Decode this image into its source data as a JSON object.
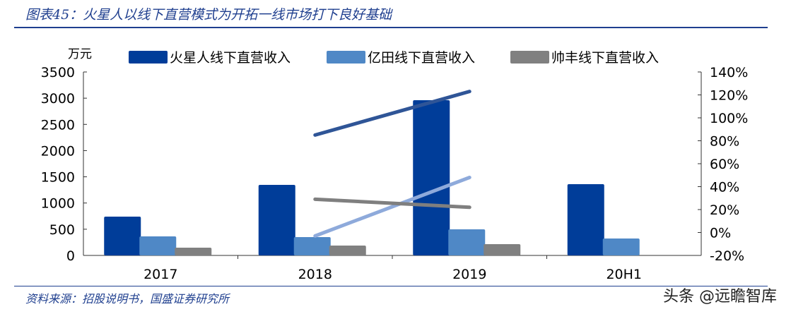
{
  "title": "图表45：火星人以线下直营模式为开拓一线市场打下良好基础",
  "source": "资料来源：招股说明书，国盛证券研究所",
  "watermark": "头条 @远瞻智库",
  "chart_data": {
    "type": "bar",
    "categories": [
      "2017",
      "2018",
      "2019",
      "20H1"
    ],
    "ylabel": "万元",
    "ylim": [
      0,
      3500
    ],
    "yticks": [
      "0",
      "500",
      "1000",
      "1500",
      "2000",
      "2500",
      "3000",
      "3500"
    ],
    "y2lim": [
      -20,
      140
    ],
    "y2ticks": [
      "-20%",
      "0%",
      "20%",
      "40%",
      "60%",
      "80%",
      "100%",
      "120%",
      "140%"
    ],
    "legend": "top",
    "grid": false,
    "series": [
      {
        "name": "火星人线下直营收入",
        "values": [
          740,
          1346,
          2961,
          1359
        ],
        "color": "#003d99"
      },
      {
        "name": "亿田线下直营收入",
        "values": [
          363,
          350,
          498,
          323
        ],
        "color": "#4f88c6"
      },
      {
        "name": "帅丰线下直营收入",
        "values": [
          148,
          188,
          215,
          null
        ],
        "color": "#808080"
      }
    ],
    "lines": [
      {
        "values": [
          null,
          85,
          123,
          null
        ],
        "color": "#2f5597",
        "axis": "right"
      },
      {
        "values": [
          null,
          -3,
          48,
          null
        ],
        "color": "#8eaadb",
        "axis": "right"
      },
      {
        "values": [
          null,
          29,
          22,
          null
        ],
        "color": "#7f7f7f",
        "axis": "right"
      }
    ]
  }
}
